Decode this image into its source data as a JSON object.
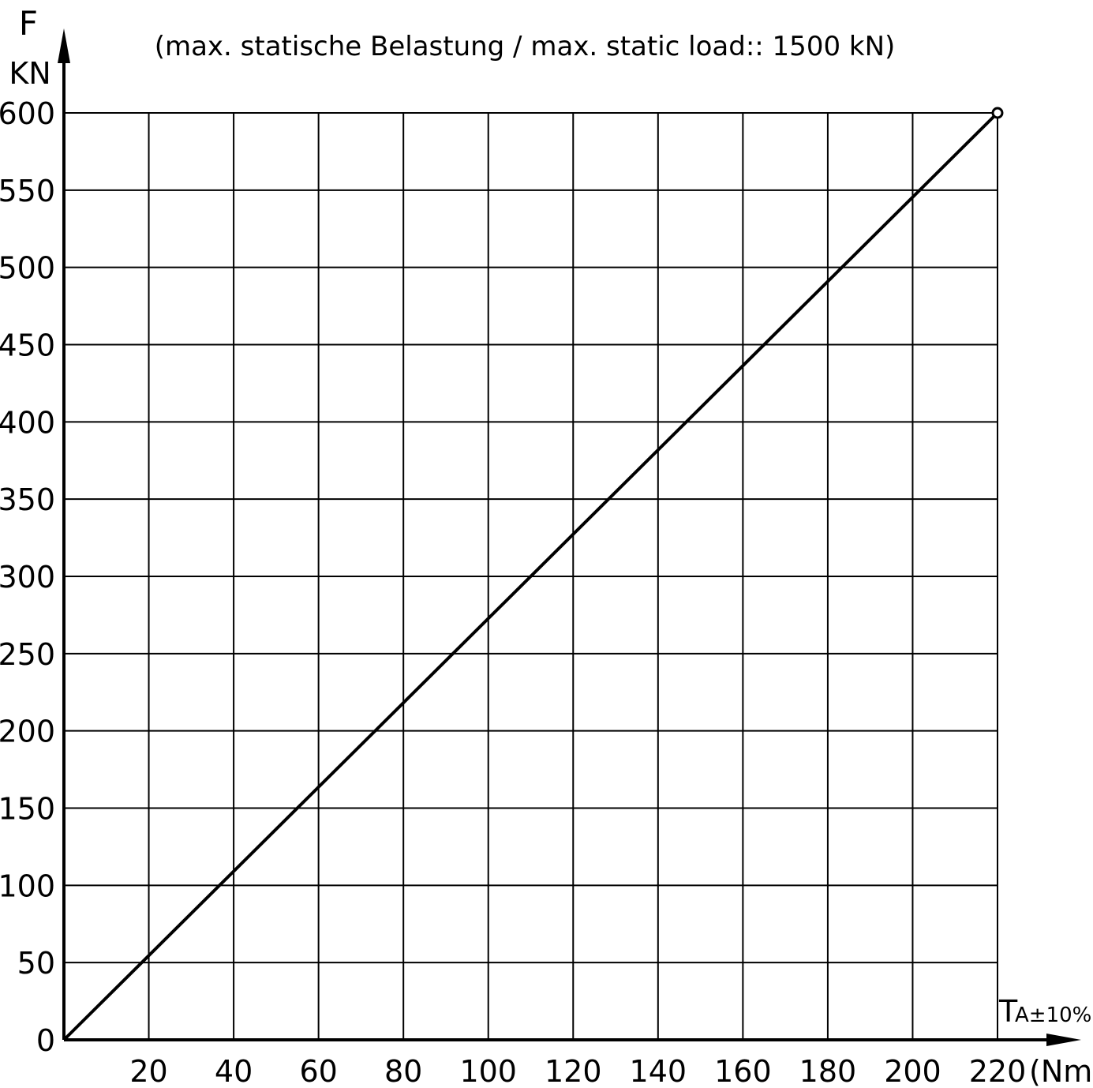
{
  "chart_data": {
    "type": "line",
    "title": "(max. statische Belastung / max. static load:: 1500 kN)",
    "ylabel": "F",
    "yunit": "KN",
    "xlabel": "T",
    "xlabel_sub": "A±10%",
    "xunit": "(Nm)",
    "xlim": [
      0,
      220
    ],
    "ylim": [
      0,
      600
    ],
    "x_ticks": [
      20,
      40,
      60,
      80,
      100,
      120,
      140,
      160,
      180,
      200,
      220
    ],
    "y_ticks": [
      0,
      50,
      100,
      150,
      200,
      250,
      300,
      350,
      400,
      450,
      500,
      550,
      600
    ],
    "grid": true,
    "series": [
      {
        "x": [
          0,
          220
        ],
        "y": [
          0,
          600
        ]
      }
    ],
    "end_marker": {
      "x": 220,
      "y": 600
    },
    "colors": {
      "line": "#000000",
      "grid": "#000000",
      "background": "#ffffff"
    }
  }
}
